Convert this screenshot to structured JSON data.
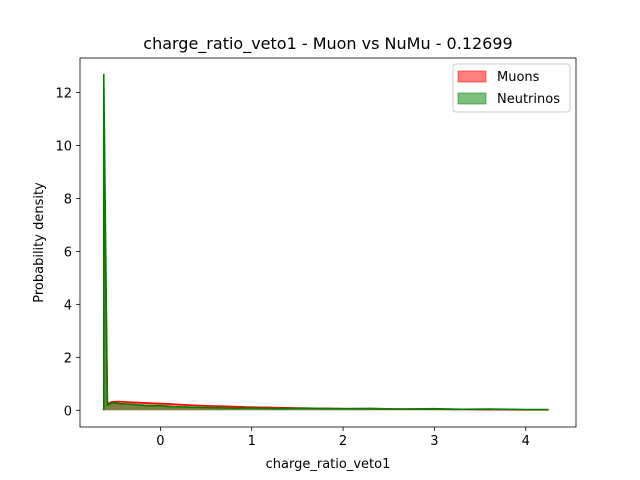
{
  "chart_data": {
    "type": "area",
    "title": "charge_ratio_veto1 - Muon vs NuMu - 0.12699",
    "xlabel": "charge_ratio_veto1",
    "ylabel": "Probability density",
    "xlim": [
      -0.88,
      4.55
    ],
    "ylim": [
      -0.63,
      13.3
    ],
    "xticks": [
      0,
      1,
      2,
      3,
      4
    ],
    "yticks": [
      0,
      2,
      4,
      6,
      8,
      10,
      12
    ],
    "grid": false,
    "legend_position": "top-right",
    "series": [
      {
        "name": "Muons",
        "color": "#ff0000",
        "fill_color": "#ff0000",
        "fill_opacity": 0.5,
        "x": [
          -0.62,
          -0.62,
          -0.58,
          -0.53,
          -0.45,
          -0.3,
          -0.1,
          0.1,
          0.3,
          0.5,
          0.8,
          1.0,
          1.3,
          1.6,
          2.0,
          2.5,
          3.0,
          3.5,
          4.0,
          4.25
        ],
        "y": [
          0,
          10.0,
          0.25,
          0.32,
          0.33,
          0.3,
          0.27,
          0.24,
          0.2,
          0.17,
          0.14,
          0.12,
          0.1,
          0.08,
          0.06,
          0.05,
          0.04,
          0.03,
          0.02,
          0.02
        ]
      },
      {
        "name": "Neutrinos",
        "color": "#008000",
        "fill_color": "#008000",
        "fill_opacity": 0.5,
        "x": [
          -0.62,
          -0.62,
          -0.58,
          -0.53,
          -0.45,
          -0.3,
          -0.15,
          0.0,
          0.1,
          0.25,
          0.4,
          0.6,
          0.8,
          1.0,
          1.3,
          1.6,
          2.0,
          2.3,
          2.6,
          3.0,
          3.3,
          3.6,
          4.0,
          4.25
        ],
        "y": [
          0,
          12.7,
          0.2,
          0.28,
          0.25,
          0.22,
          0.17,
          0.18,
          0.14,
          0.13,
          0.11,
          0.1,
          0.08,
          0.09,
          0.06,
          0.08,
          0.06,
          0.07,
          0.05,
          0.06,
          0.04,
          0.05,
          0.03,
          0.03
        ]
      }
    ]
  }
}
